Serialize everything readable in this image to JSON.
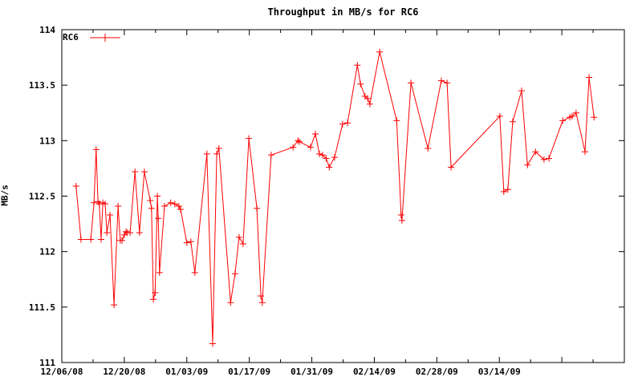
{
  "colors": {
    "background": "#ffffff",
    "text": "#000000",
    "series": "#ff0000",
    "axis": "#000000"
  },
  "chart_data": {
    "type": "line",
    "title": "Throughput in MB/s for RC6",
    "ylabel": "MB/s",
    "xlabel": "",
    "legend": {
      "position": "top-left-inside",
      "series_label": "RC6"
    },
    "marker": "plus",
    "grid": false,
    "x_axis": {
      "unit": "date",
      "range_days": [
        0,
        126
      ],
      "major_tick_interval_days": 14,
      "minor_tick_interval_days": 7,
      "tick_labels": [
        "12/06/08",
        "12/20/08",
        "01/03/09",
        "01/17/09",
        "01/31/09",
        "02/14/09",
        "02/28/09",
        "03/14/09"
      ]
    },
    "y_axis": {
      "min": 111,
      "max": 114,
      "tick_step": 0.5,
      "tick_labels": [
        "111",
        "111.5",
        "112",
        "112.5",
        "113",
        "113.5",
        "114"
      ]
    },
    "series": [
      {
        "name": "RC6",
        "color": "#ff0000",
        "points_day_value": [
          [
            3.2,
            112.59
          ],
          [
            4.3,
            112.11
          ],
          [
            6.5,
            112.11
          ],
          [
            7.2,
            112.44
          ],
          [
            7.7,
            112.92
          ],
          [
            8.1,
            112.45
          ],
          [
            8.4,
            112.43
          ],
          [
            8.8,
            112.11
          ],
          [
            9.2,
            112.44
          ],
          [
            9.7,
            112.43
          ],
          [
            10.1,
            112.17
          ],
          [
            10.8,
            112.33
          ],
          [
            11.7,
            111.52
          ],
          [
            12.6,
            112.41
          ],
          [
            13.1,
            112.1
          ],
          [
            13.5,
            112.1
          ],
          [
            14.0,
            112.15
          ],
          [
            14.4,
            112.18
          ],
          [
            14.7,
            112.17
          ],
          [
            15.3,
            112.17
          ],
          [
            16.4,
            112.72
          ],
          [
            17.4,
            112.17
          ],
          [
            18.5,
            112.72
          ],
          [
            19.8,
            112.46
          ],
          [
            20.1,
            112.39
          ],
          [
            20.5,
            111.57
          ],
          [
            20.9,
            111.63
          ],
          [
            21.4,
            112.5
          ],
          [
            21.6,
            112.3
          ],
          [
            21.9,
            111.81
          ],
          [
            23.0,
            112.41
          ],
          [
            24.4,
            112.44
          ],
          [
            25.3,
            112.43
          ],
          [
            26.2,
            112.41
          ],
          [
            26.6,
            112.38
          ],
          [
            28.0,
            112.08
          ],
          [
            28.9,
            112.09
          ],
          [
            29.8,
            111.81
          ],
          [
            32.5,
            112.88
          ],
          [
            33.8,
            111.17
          ],
          [
            34.7,
            112.88
          ],
          [
            35.2,
            112.93
          ],
          [
            37.8,
            111.54
          ],
          [
            38.8,
            111.8
          ],
          [
            39.7,
            112.13
          ],
          [
            40.6,
            112.07
          ],
          [
            41.9,
            113.02
          ],
          [
            43.7,
            112.39
          ],
          [
            44.6,
            111.6
          ],
          [
            44.9,
            111.54
          ],
          [
            46.9,
            112.87
          ],
          [
            51.8,
            112.94
          ],
          [
            52.9,
            113.0
          ],
          [
            53.2,
            112.99
          ],
          [
            55.7,
            112.94
          ],
          [
            56.8,
            113.06
          ],
          [
            57.7,
            112.88
          ],
          [
            58.4,
            112.87
          ],
          [
            59.2,
            112.84
          ],
          [
            59.9,
            112.76
          ],
          [
            61.1,
            112.85
          ],
          [
            62.9,
            113.15
          ],
          [
            64.0,
            113.16
          ],
          [
            66.2,
            113.68
          ],
          [
            66.9,
            113.51
          ],
          [
            67.9,
            113.4
          ],
          [
            68.5,
            113.38
          ],
          [
            69.0,
            113.33
          ],
          [
            71.2,
            113.8
          ],
          [
            75.0,
            113.18
          ],
          [
            76.0,
            112.33
          ],
          [
            76.2,
            112.28
          ],
          [
            78.2,
            113.52
          ],
          [
            82.0,
            112.93
          ],
          [
            85.0,
            113.54
          ],
          [
            86.3,
            113.52
          ],
          [
            87.2,
            112.76
          ],
          [
            98.1,
            113.22
          ],
          [
            99.0,
            112.54
          ],
          [
            99.9,
            112.56
          ],
          [
            101.0,
            113.17
          ],
          [
            103.0,
            113.45
          ],
          [
            104.3,
            112.78
          ],
          [
            106.1,
            112.9
          ],
          [
            108.0,
            112.83
          ],
          [
            109.1,
            112.84
          ],
          [
            112.2,
            113.18
          ],
          [
            113.8,
            113.21
          ],
          [
            114.3,
            113.22
          ],
          [
            115.2,
            113.25
          ],
          [
            117.2,
            112.9
          ],
          [
            118.1,
            113.57
          ],
          [
            119.2,
            113.21
          ]
        ]
      }
    ]
  }
}
